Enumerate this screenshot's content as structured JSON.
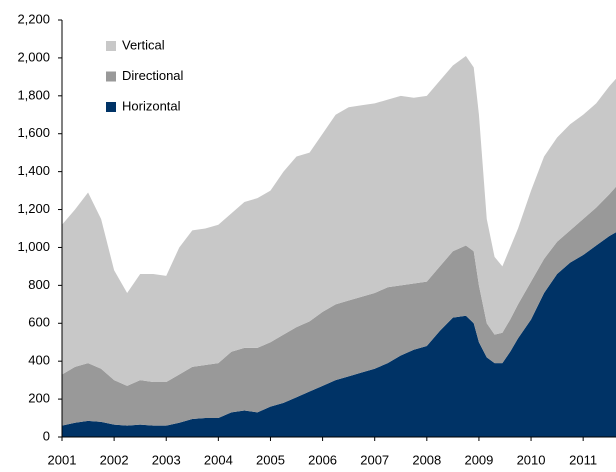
{
  "chart_data": {
    "type": "stacked_area",
    "x": [
      2001,
      2001.25,
      2001.5,
      2001.75,
      2002,
      2002.25,
      2002.5,
      2002.75,
      2003,
      2003.25,
      2003.5,
      2003.75,
      2004,
      2004.25,
      2004.5,
      2004.75,
      2005,
      2005.25,
      2005.5,
      2005.75,
      2006,
      2006.25,
      2006.5,
      2006.75,
      2007,
      2007.25,
      2007.5,
      2007.75,
      2008,
      2008.25,
      2008.5,
      2008.75,
      2008.9,
      2009,
      2009.15,
      2009.3,
      2009.45,
      2009.6,
      2009.75,
      2010,
      2010.25,
      2010.5,
      2010.75,
      2011,
      2011.25,
      2011.5,
      2011.63
    ],
    "series": [
      {
        "name": "Horizontal",
        "color": "#003366",
        "values": [
          60,
          75,
          85,
          80,
          65,
          60,
          65,
          60,
          60,
          75,
          95,
          100,
          100,
          130,
          140,
          130,
          160,
          180,
          210,
          240,
          270,
          300,
          320,
          340,
          360,
          390,
          430,
          460,
          480,
          560,
          630,
          640,
          600,
          500,
          420,
          390,
          390,
          450,
          520,
          620,
          760,
          860,
          920,
          960,
          1010,
          1060,
          1080
        ]
      },
      {
        "name": "Directional",
        "color": "#999999",
        "values": [
          270,
          295,
          305,
          280,
          235,
          210,
          235,
          230,
          230,
          255,
          275,
          280,
          290,
          320,
          330,
          340,
          340,
          360,
          370,
          370,
          390,
          400,
          400,
          400,
          400,
          400,
          370,
          350,
          340,
          340,
          350,
          370,
          380,
          300,
          180,
          150,
          160,
          170,
          180,
          200,
          180,
          170,
          170,
          190,
          200,
          220,
          240
        ]
      },
      {
        "name": "Vertical",
        "color": "#c8c8c8",
        "values": [
          790,
          830,
          900,
          790,
          580,
          490,
          560,
          570,
          560,
          670,
          720,
          720,
          730,
          730,
          770,
          790,
          800,
          860,
          900,
          890,
          940,
          1000,
          1020,
          1010,
          1000,
          990,
          1000,
          980,
          980,
          980,
          980,
          1000,
          970,
          900,
          550,
          410,
          350,
          380,
          400,
          480,
          540,
          550,
          560,
          550,
          550,
          570,
          570
        ]
      }
    ],
    "xlim": [
      2001,
      2011.63
    ],
    "xticks": [
      2001,
      2002,
      2003,
      2004,
      2005,
      2006,
      2007,
      2008,
      2009,
      2010,
      2011
    ],
    "ylim": [
      0,
      2200
    ],
    "yticks": [
      0,
      200,
      400,
      600,
      800,
      {
        "value": 1000,
        "label": "1,000"
      },
      {
        "value": 1200,
        "label": "1,200"
      },
      {
        "value": 1400,
        "label": "1,400"
      },
      {
        "value": 1600,
        "label": "1,600"
      },
      {
        "value": 1800,
        "label": "1,800"
      },
      {
        "value": 2000,
        "label": "2,000"
      },
      {
        "value": 2200,
        "label": "2,200"
      }
    ],
    "legend": "top-left"
  }
}
